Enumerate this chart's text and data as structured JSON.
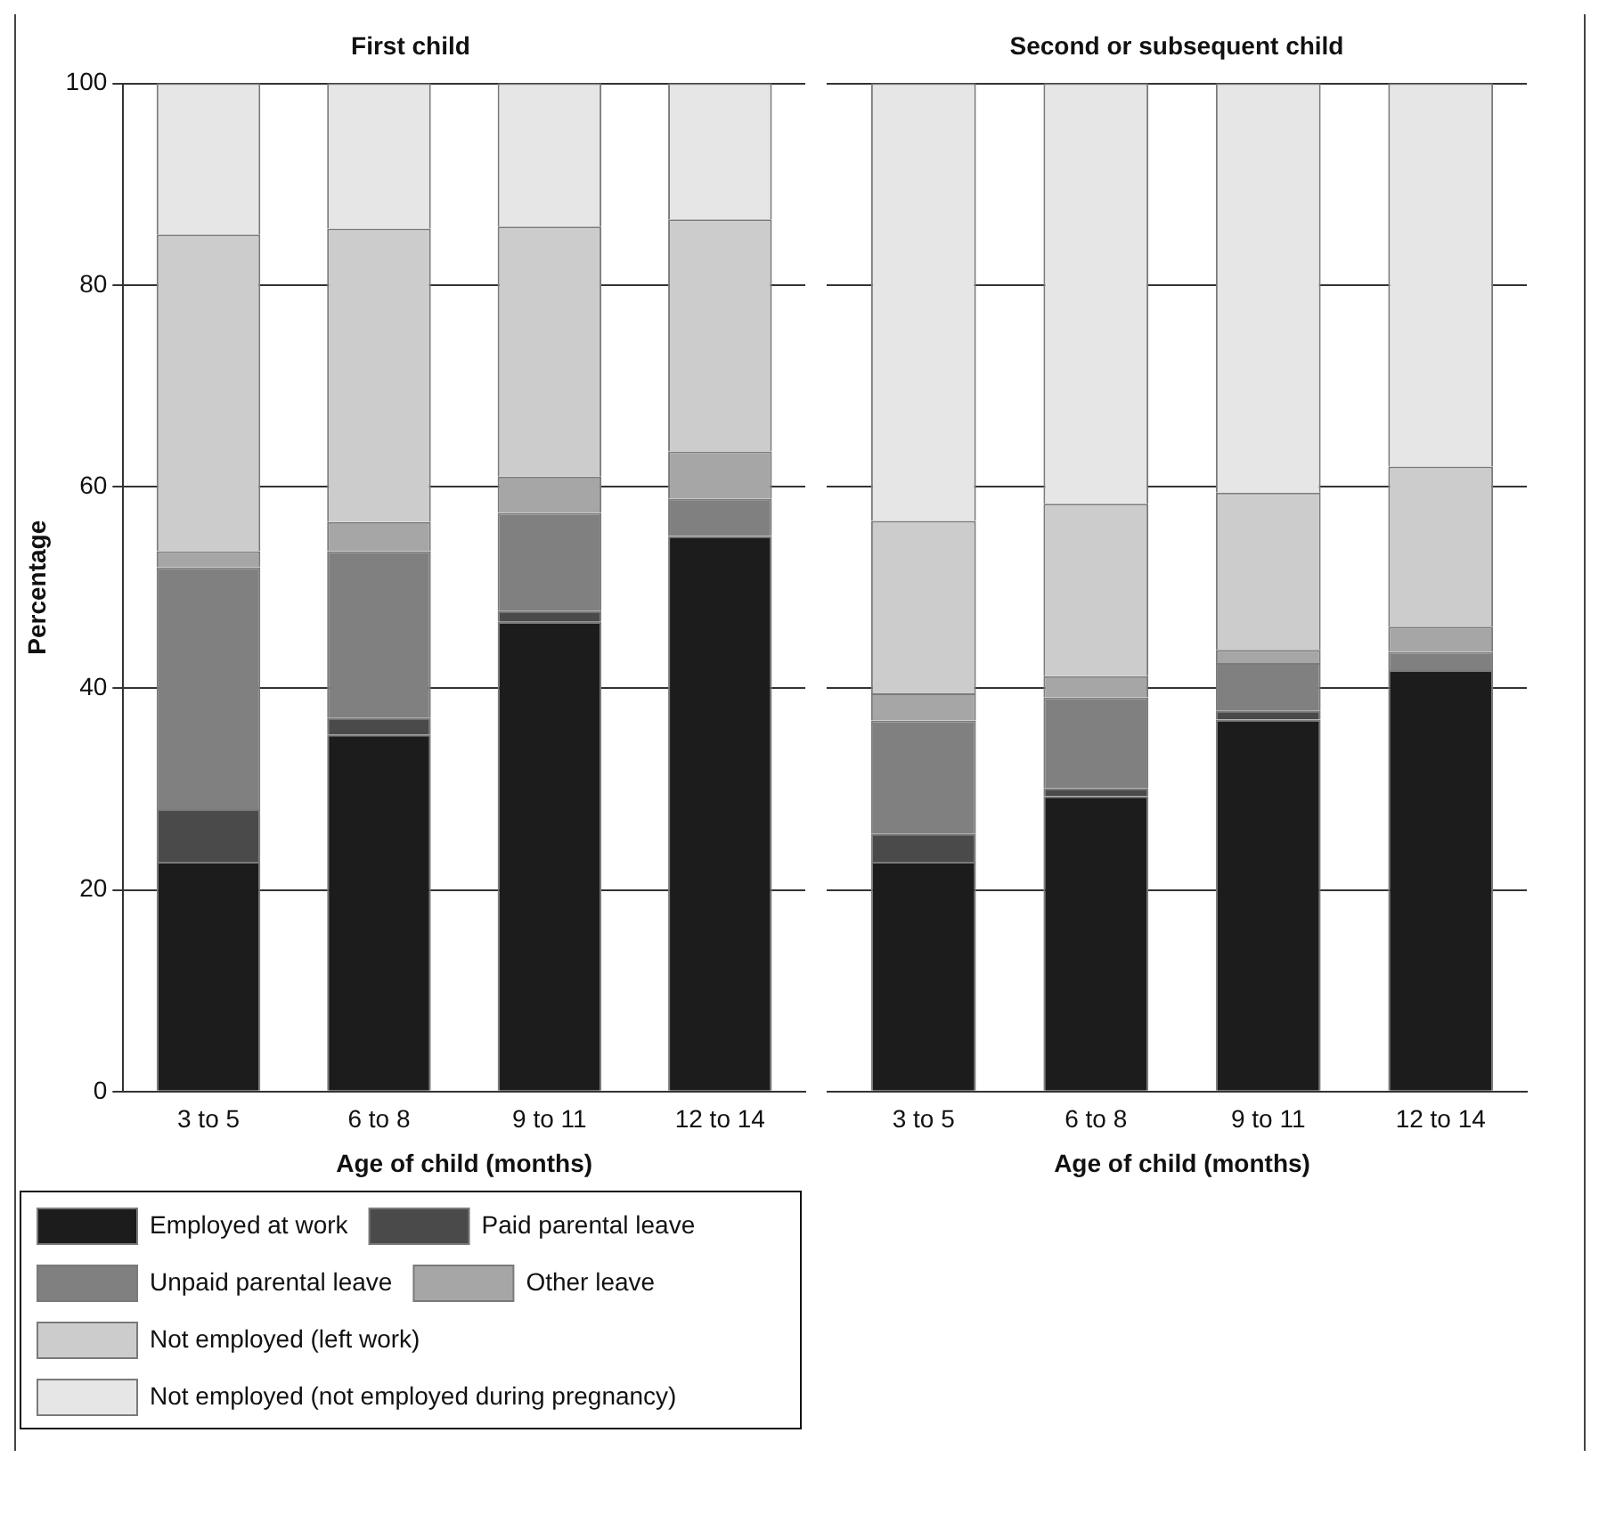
{
  "chart_data": [
    {
      "type": "bar",
      "title": "First child",
      "xlabel": "Age of child (months)",
      "ylabel": "Percentage",
      "categories": [
        "3 to 5",
        "6 to 8",
        "9 to 11",
        "12 to 14"
      ],
      "stacked": true,
      "ylim": [
        0,
        100
      ],
      "yticks": [
        0,
        20,
        40,
        60,
        80,
        100
      ],
      "grid": "y",
      "legend": "bottom",
      "series": [
        {
          "name": "Employed at work",
          "color": "#1c1c1c",
          "values": [
            22.8,
            35.4,
            46.6,
            55.1
          ]
        },
        {
          "name": "Paid parental leave",
          "color": "#4a4a4a",
          "values": [
            5.2,
            1.7,
            1.1,
            0
          ]
        },
        {
          "name": "Unpaid parental leave",
          "color": "#808080",
          "values": [
            24,
            16.5,
            9.7,
            3.7
          ]
        },
        {
          "name": "Other leave",
          "color": "#a6a6a6",
          "values": [
            1.6,
            2.9,
            3.6,
            4.7
          ]
        },
        {
          "name": "Not employed (left work)",
          "color": "#cccccc",
          "values": [
            31.4,
            29.1,
            24.8,
            23
          ]
        },
        {
          "name": "Not employed (not employed during pregnancy)",
          "color": "#e6e6e6",
          "values": [
            15,
            14.4,
            14.2,
            13.5
          ]
        }
      ]
    },
    {
      "type": "bar",
      "title": "Second or subsequent child",
      "xlabel": "Age of child (months)",
      "categories": [
        "3 to 5",
        "6 to 8",
        "9 to 11",
        "12 to 14"
      ],
      "stacked": true,
      "ylim": [
        0,
        100
      ],
      "yticks": [
        0,
        20,
        40,
        60,
        80,
        100
      ],
      "grid": "y",
      "tick_labels": "x",
      "series": [
        {
          "color": "#1c1c1c",
          "values": [
            22.8,
            29.3,
            36.9,
            41.8
          ]
        },
        {
          "color": "#4a4a4a",
          "values": [
            2.8,
            0.8,
            0.9,
            0
          ]
        },
        {
          "color": "#808080",
          "values": [
            11.2,
            9,
            4.7,
            1.8
          ]
        },
        {
          "color": "#a6a6a6",
          "values": [
            2.7,
            2.1,
            1.3,
            2.5
          ]
        },
        {
          "color": "#cccccc",
          "values": [
            17.1,
            17.1,
            15.6,
            15.9
          ]
        },
        {
          "color": "#e6e6e6",
          "values": [
            43.4,
            41.7,
            40.6,
            38
          ]
        }
      ]
    }
  ]
}
